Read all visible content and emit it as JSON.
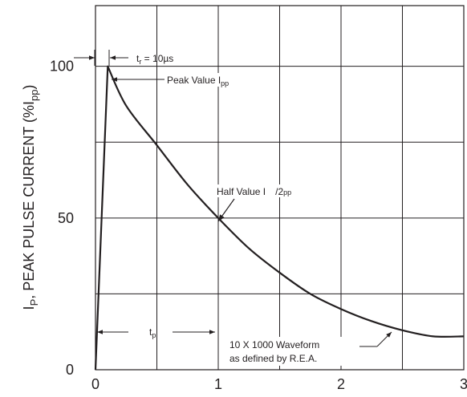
{
  "chart_data": {
    "type": "line",
    "ylabel_main": "I",
    "ylabel_sub": "P",
    "ylabel_rest": ", PEAK PULSE CURRENT (%I",
    "ylabel_sub2": "pp",
    "ylabel_end": ")",
    "xlim": [
      0,
      3
    ],
    "ylim": [
      0,
      120
    ],
    "x_ticks": [
      "0",
      "1",
      "2",
      "3"
    ],
    "y_ticks": [
      {
        "value": 0,
        "label": "0"
      },
      {
        "value": 50,
        "label": "50"
      },
      {
        "value": 100,
        "label": "100"
      }
    ],
    "v_gridlines": [
      0.5,
      1,
      1.5,
      2,
      2.5
    ],
    "h_gridlines": [
      25,
      50,
      75,
      100
    ],
    "grid": true,
    "series": [
      {
        "x": [
          0,
          0.1,
          0.25,
          0.5,
          0.75,
          1.0,
          1.25,
          1.5,
          1.75,
          2.0,
          2.25,
          2.5,
          2.75,
          3.0
        ],
        "values": [
          0,
          100,
          87,
          74,
          61,
          50,
          40,
          32,
          25,
          20,
          16,
          13,
          11,
          11
        ]
      }
    ],
    "annotations": {
      "tr_label": "t",
      "tr_sub": "r",
      "tr_value": " = 10µs",
      "peak_label": "Peak Value I",
      "peak_sub": "pp",
      "half_label": "Half Value I",
      "half_div": "/2",
      "half_sub": "pp",
      "tp_label": "t",
      "tp_sub": "p",
      "wave_line1": "10 X 1000 Waveform",
      "wave_line2": "as defined by R.E.A."
    }
  }
}
